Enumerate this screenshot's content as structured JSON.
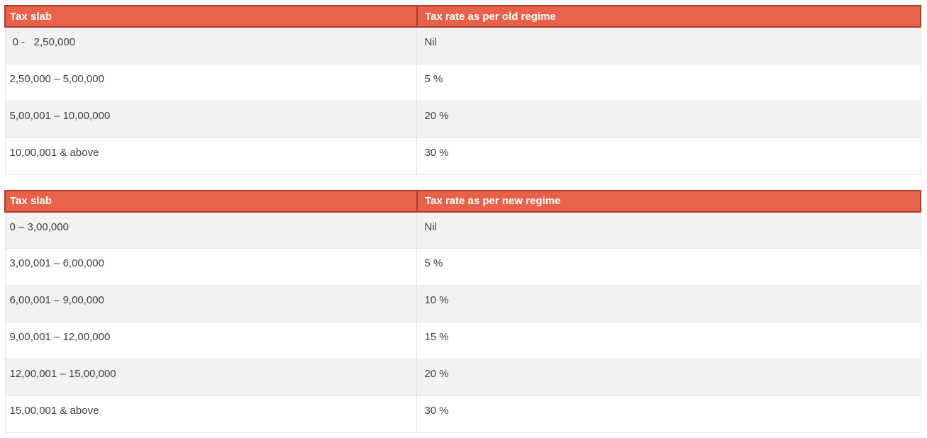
{
  "colors": {
    "header_bg": "#e8624a",
    "header_border": "#b23b28",
    "row_alt_bg": "#f2f2f2",
    "text_color": "#3c4043",
    "cell_border": "#e6e6e6",
    "outer_border": "#dcdcdc"
  },
  "tables": [
    {
      "name": "old-regime",
      "headers": [
        "Tax slab",
        "Tax rate as per old regime"
      ],
      "rows": [
        [
          " 0 -   2,50,000",
          "Nil"
        ],
        [
          "2,50,000 – 5,00,000",
          "5 %"
        ],
        [
          "5,00,001 – 10,00,000",
          "20 %"
        ],
        [
          "10,00,001 & above",
          "30 %"
        ]
      ]
    },
    {
      "name": "new-regime",
      "headers": [
        "Tax slab",
        "Tax rate as per new regime"
      ],
      "rows": [
        [
          "0 – 3,00,000",
          "Nil"
        ],
        [
          "3,00,001 – 6,00,000",
          "5 %"
        ],
        [
          "6,00,001 – 9,00,000",
          "10 %"
        ],
        [
          "9,00,001 – 12,00,000",
          "15 %"
        ],
        [
          "12,00,001 – 15,00,000",
          "20 %"
        ],
        [
          "15,00,001 & above",
          "30 %"
        ]
      ]
    }
  ]
}
